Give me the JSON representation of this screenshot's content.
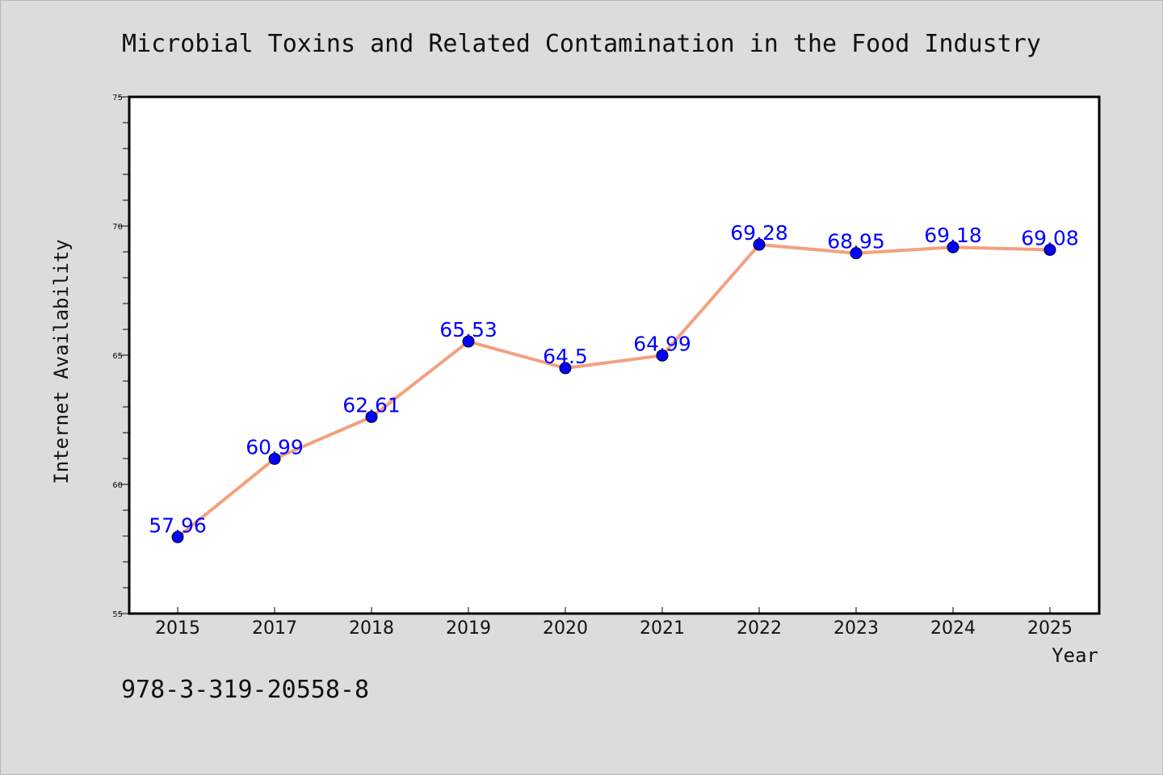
{
  "chart_data": {
    "type": "line",
    "title": "Microbial Toxins and Related Contamination in the Food Industry",
    "xlabel": "Year",
    "ylabel": "Internet Availability",
    "categories": [
      "2015",
      "2017",
      "2018",
      "2019",
      "2020",
      "2021",
      "2022",
      "2023",
      "2024",
      "2025"
    ],
    "series": [
      {
        "values": [
          57.96,
          60.99,
          62.61,
          65.53,
          64.5,
          64.99,
          69.28,
          68.95,
          69.18,
          69.08
        ],
        "labels": [
          "57.96",
          "60.99",
          "62.61",
          "65.53",
          "64.5",
          "64.99",
          "69.28",
          "68.95",
          "69.18",
          "69.08"
        ],
        "line_color": "#f4a07e",
        "marker_color": "#0000ff"
      }
    ],
    "ylim": [
      55,
      75
    ],
    "yticks": [
      {
        "value": 55,
        "label": "55"
      },
      {
        "value": 60,
        "label": "60"
      },
      {
        "value": 65,
        "label": "65"
      },
      {
        "value": 70,
        "label": "70"
      },
      {
        "value": 75,
        "label": "75"
      }
    ],
    "yminor_step": 1,
    "grid": false,
    "legend": "none",
    "annotation": "978-3-319-20558-8",
    "colors": {
      "background": "#dcdcdc",
      "plot_background": "#ffffff",
      "data_label": "#0000ff"
    }
  }
}
